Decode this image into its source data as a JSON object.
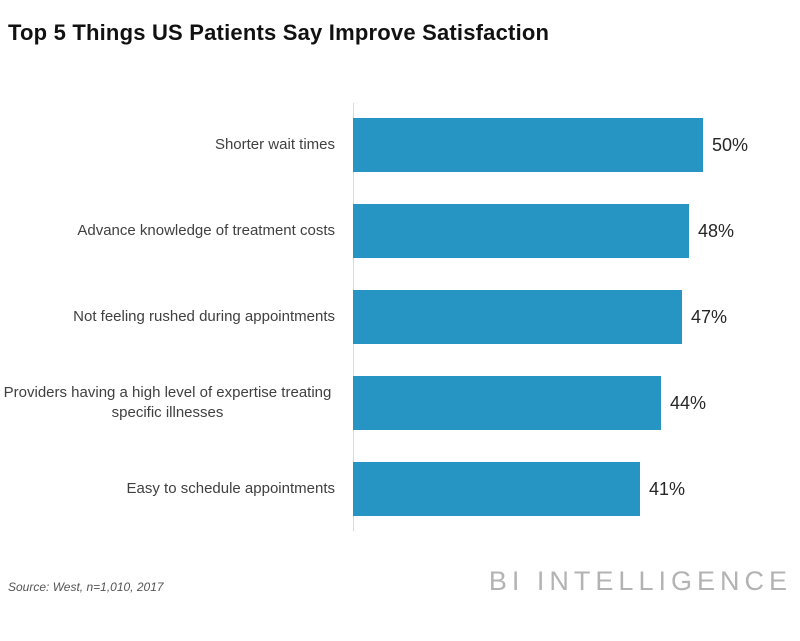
{
  "title": "Top 5 Things US Patients Say Improve Satisfaction",
  "source_note": "Source: West, n=1,010, 2017",
  "branding": "BI INTELLIGENCE",
  "colors": {
    "bar": "#2795c3",
    "axis": "#d9d9d9",
    "title_text": "#111111",
    "category_text": "#404040",
    "value_text": "#262626",
    "source_text": "#555555",
    "branding_text": "#b3b3b3"
  },
  "chart_data": {
    "type": "bar",
    "orientation": "horizontal",
    "title": "Top 5 Things US Patients Say Improve Satisfaction",
    "categories": [
      "Shorter wait times",
      "Advance knowledge of treatment costs",
      "Not feeling rushed during appointments",
      "Providers having a high level of expertise treating specific illnesses",
      "Easy to schedule appointments"
    ],
    "values": [
      50,
      48,
      47,
      44,
      41
    ],
    "value_labels": [
      "50%",
      "48%",
      "47%",
      "44%",
      "41%"
    ],
    "unit": "%",
    "xlim": [
      0,
      55
    ],
    "grid": false,
    "legend": false,
    "data_labels": "outside-end",
    "source": "Source: West, n=1,010, 2017"
  }
}
